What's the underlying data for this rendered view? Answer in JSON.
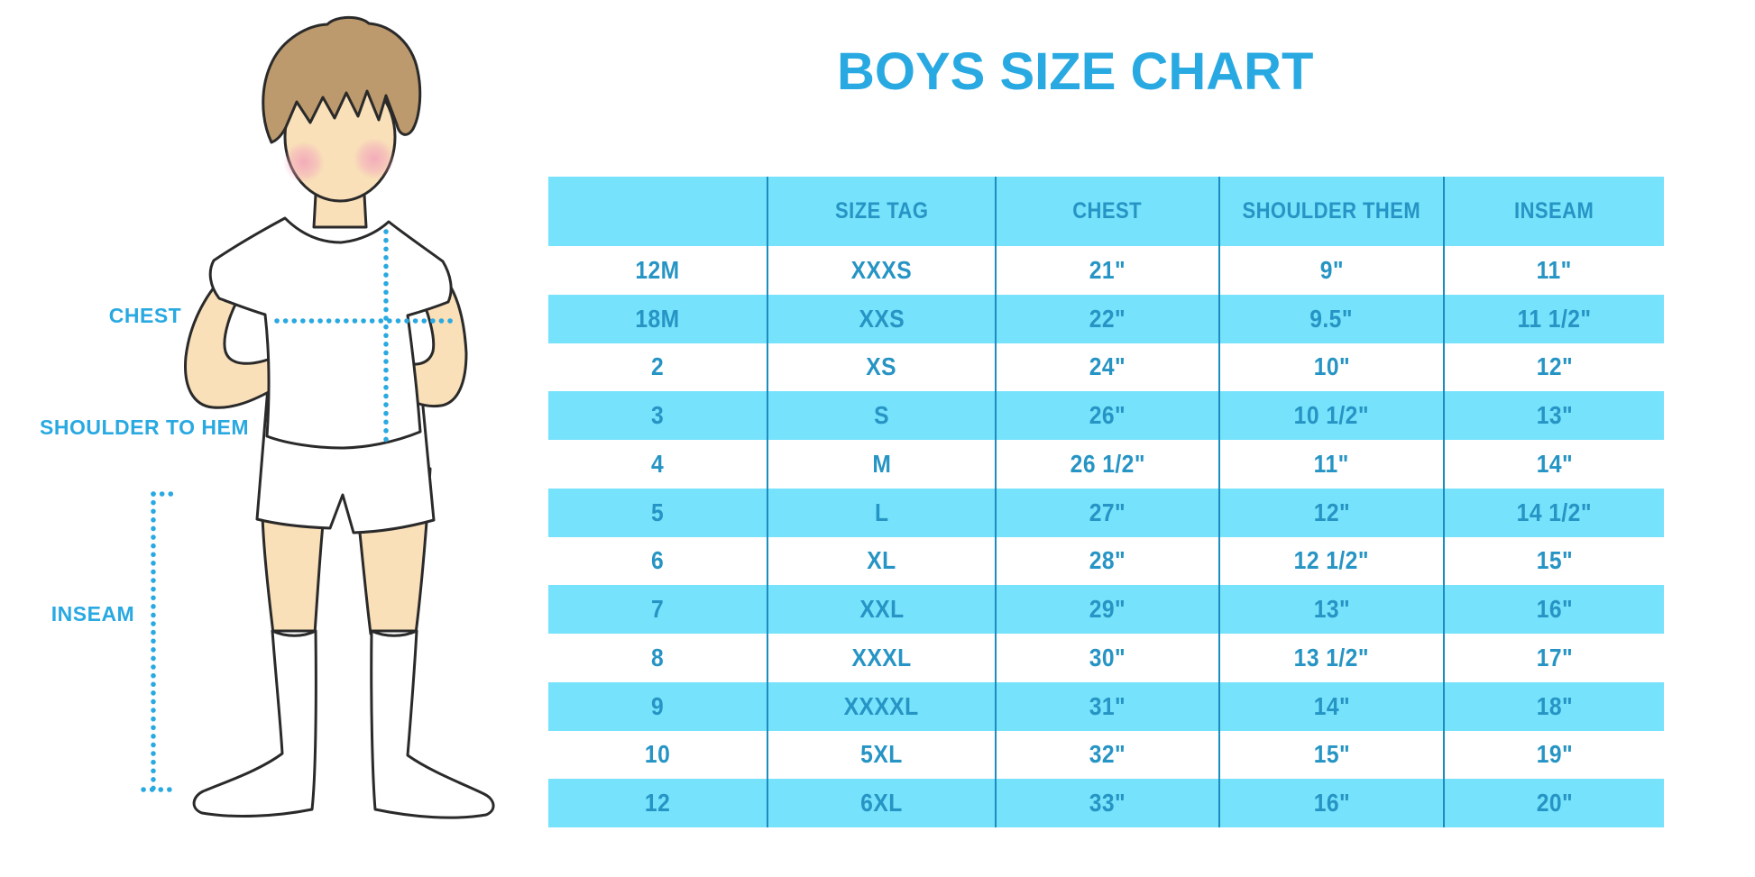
{
  "page": {
    "title": "BOYS SIZE CHART"
  },
  "colors": {
    "accent_blue": "#29A9E1",
    "table_stripe": "#76E2FB",
    "table_text": "#2694C4",
    "table_divider": "#1B8DBF",
    "skin": "#F9E0B9",
    "hair": "#BD9A6D",
    "cheek_pink": "#F2A3BA",
    "outline": "#2A2A2A"
  },
  "diagram": {
    "chest_label": "CHEST",
    "shoulder_to_hem_label": "SHOULDER TO HEM",
    "inseam_label": "INSEAM"
  },
  "size_chart": {
    "columns": [
      "",
      "SIZE TAG",
      "CHEST",
      "SHOULDER THEM",
      "INSEAM"
    ],
    "rows": [
      [
        "12M",
        "XXXS",
        "21\"",
        "9\"",
        "11\""
      ],
      [
        "18M",
        "XXS",
        "22\"",
        "9.5\"",
        "11 1/2\""
      ],
      [
        "2",
        "XS",
        "24\"",
        "10\"",
        "12\""
      ],
      [
        "3",
        "S",
        "26\"",
        "10 1/2\"",
        "13\""
      ],
      [
        "4",
        "M",
        "26 1/2\"",
        "11\"",
        "14\""
      ],
      [
        "5",
        "L",
        "27\"",
        "12\"",
        "14 1/2\""
      ],
      [
        "6",
        "XL",
        "28\"",
        "12 1/2\"",
        "15\""
      ],
      [
        "7",
        "XXL",
        "29\"",
        "13\"",
        "16\""
      ],
      [
        "8",
        "XXXL",
        "30\"",
        "13 1/2\"",
        "17\""
      ],
      [
        "9",
        "XXXXL",
        "31\"",
        "14\"",
        "18\""
      ],
      [
        "10",
        "5XL",
        "32\"",
        "15\"",
        "19\""
      ],
      [
        "12",
        "6XL",
        "33\"",
        "16\"",
        "20\""
      ]
    ]
  }
}
